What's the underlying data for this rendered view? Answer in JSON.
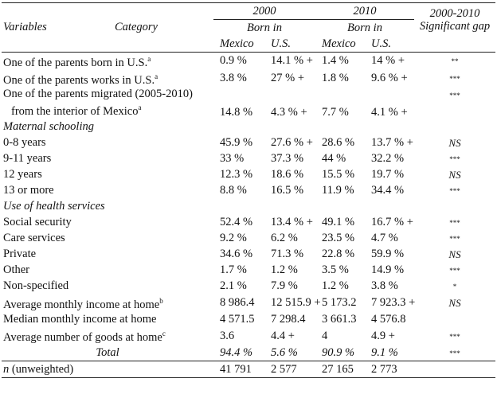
{
  "header": {
    "year_a": "2000",
    "year_b": "2010",
    "gap_title": "2000-2010 Significant gap",
    "variables": "Variables",
    "category": "Category",
    "born_a": "Born in",
    "born_b": "Born in",
    "cols": [
      "Mexico",
      "U.S.",
      "Mexico",
      "U.S."
    ]
  },
  "rows": [
    {
      "label": "One of the parents born in U.S.",
      "note": "a",
      "cells": [
        "0.9 %",
        "14.1 % +",
        "1.4 %",
        "14 % +"
      ],
      "gap": "**"
    },
    {
      "label": "One of the parents works in U.S.",
      "note": "a",
      "cells": [
        "3.8 %",
        "27 % +",
        "1.8 %",
        "9.6 % +"
      ],
      "gap": "***"
    },
    {
      "label": "One of the parents migrated (2005-2010)",
      "label2": "from the interior of Mexico",
      "note": "a",
      "cells": [
        "14.8 %",
        "4.3 % +",
        "7.7 %",
        "4.1 % +"
      ],
      "gap": "***"
    },
    {
      "section": "Maternal schooling"
    },
    {
      "label": "0-8 years",
      "cells": [
        "45.9 %",
        "27.6 % +",
        "28.6 %",
        "13.7 % +"
      ],
      "gap": "NS"
    },
    {
      "label": "9-11 years",
      "cells": [
        "33 %",
        "37.3 %",
        "44 %",
        "32.2 %"
      ],
      "gap": "***"
    },
    {
      "label": "12 years",
      "cells": [
        "12.3 %",
        "18.6 %",
        "15.5 %",
        "19.7 %"
      ],
      "gap": "NS"
    },
    {
      "label": "13 or more",
      "cells": [
        "8.8 %",
        "16.5 %",
        "11.9 %",
        "34.4 %"
      ],
      "gap": "***"
    },
    {
      "section": "Use of health services"
    },
    {
      "label": "Social security",
      "cells": [
        "52.4 %",
        "13.4 % +",
        "49.1 %",
        "16.7 % +"
      ],
      "gap": "***"
    },
    {
      "label": "Care services",
      "cells": [
        "9.2 %",
        "6.2 %",
        "23.5 %",
        "4.7 %"
      ],
      "gap": "***"
    },
    {
      "label": "Private",
      "cells": [
        "34.6 %",
        "71.3 %",
        "22.8 %",
        "59.9 %"
      ],
      "gap": "NS"
    },
    {
      "label": "Other",
      "cells": [
        "1.7 %",
        "1.2 %",
        "3.5 %",
        "14.9 %"
      ],
      "gap": "***"
    },
    {
      "label": "Non-specified",
      "cells": [
        "2.1 %",
        "7.9 %",
        "1.2 %",
        "3.8 %"
      ],
      "gap": "*"
    },
    {
      "label": "Average monthly income at home",
      "note": "b",
      "cells": [
        "8 986.4",
        "12 515.9 +",
        "5 173.2",
        "7 923.3 +"
      ],
      "gap": "NS"
    },
    {
      "label": "Median monthly income at home",
      "cells": [
        "4 571.5",
        "7 298.4",
        "3 661.3",
        "4 576.8"
      ]
    },
    {
      "label": "Average number of goods at home",
      "note": "c",
      "cells": [
        "3.6",
        "4.4 +",
        "4",
        "4.9 +"
      ],
      "gap": "***"
    },
    {
      "total": "Total",
      "cells": [
        "94.4 %",
        "5.6 %",
        "90.9 %",
        "9.1 %"
      ],
      "gap": "***"
    },
    {
      "label_em": "n",
      "label": "(unweighted)",
      "cells": [
        "41 791",
        "2 577",
        "27 165",
        "2 773"
      ]
    }
  ]
}
